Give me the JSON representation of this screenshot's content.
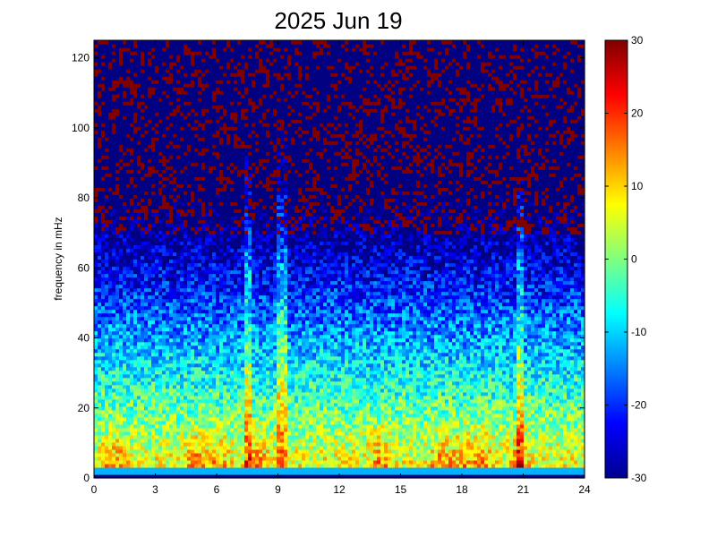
{
  "chart_data": {
    "type": "heatmap",
    "title": "2025 Jun 19",
    "xlabel": "",
    "ylabel": "frequency in mHz",
    "xlim": [
      0,
      24
    ],
    "ylim": [
      0,
      125
    ],
    "x_ticks": [
      "0",
      "3",
      "6",
      "9",
      "12",
      "15",
      "18",
      "21",
      "24"
    ],
    "x_tick_values": [
      0,
      3,
      6,
      9,
      12,
      15,
      18,
      21,
      24
    ],
    "y_ticks": [
      "0",
      "20",
      "40",
      "60",
      "80",
      "100",
      "120"
    ],
    "y_tick_values": [
      0,
      20,
      40,
      60,
      80,
      100,
      120
    ],
    "colorbar": {
      "colormap": "jet",
      "clim": [
        -30,
        30
      ],
      "ticks": [
        "30",
        "20",
        "10",
        "0",
        "-10",
        "-20",
        "-30"
      ],
      "tick_values": [
        30,
        20,
        10,
        0,
        -10,
        -20,
        -30
      ]
    },
    "grid": false,
    "pattern": {
      "description": "Power spectrogram: frequency (mHz) vs hour of day (UT). Strong power (yellow/red) below ~20 mHz, decaying to blue/dark red noise at high frequency.",
      "hot_spots_hours": [
        1,
        5,
        6,
        8,
        14,
        17,
        18,
        19,
        20.8
      ],
      "vertical_streaks_hours": [
        7.5,
        9.2,
        20.8
      ]
    }
  }
}
